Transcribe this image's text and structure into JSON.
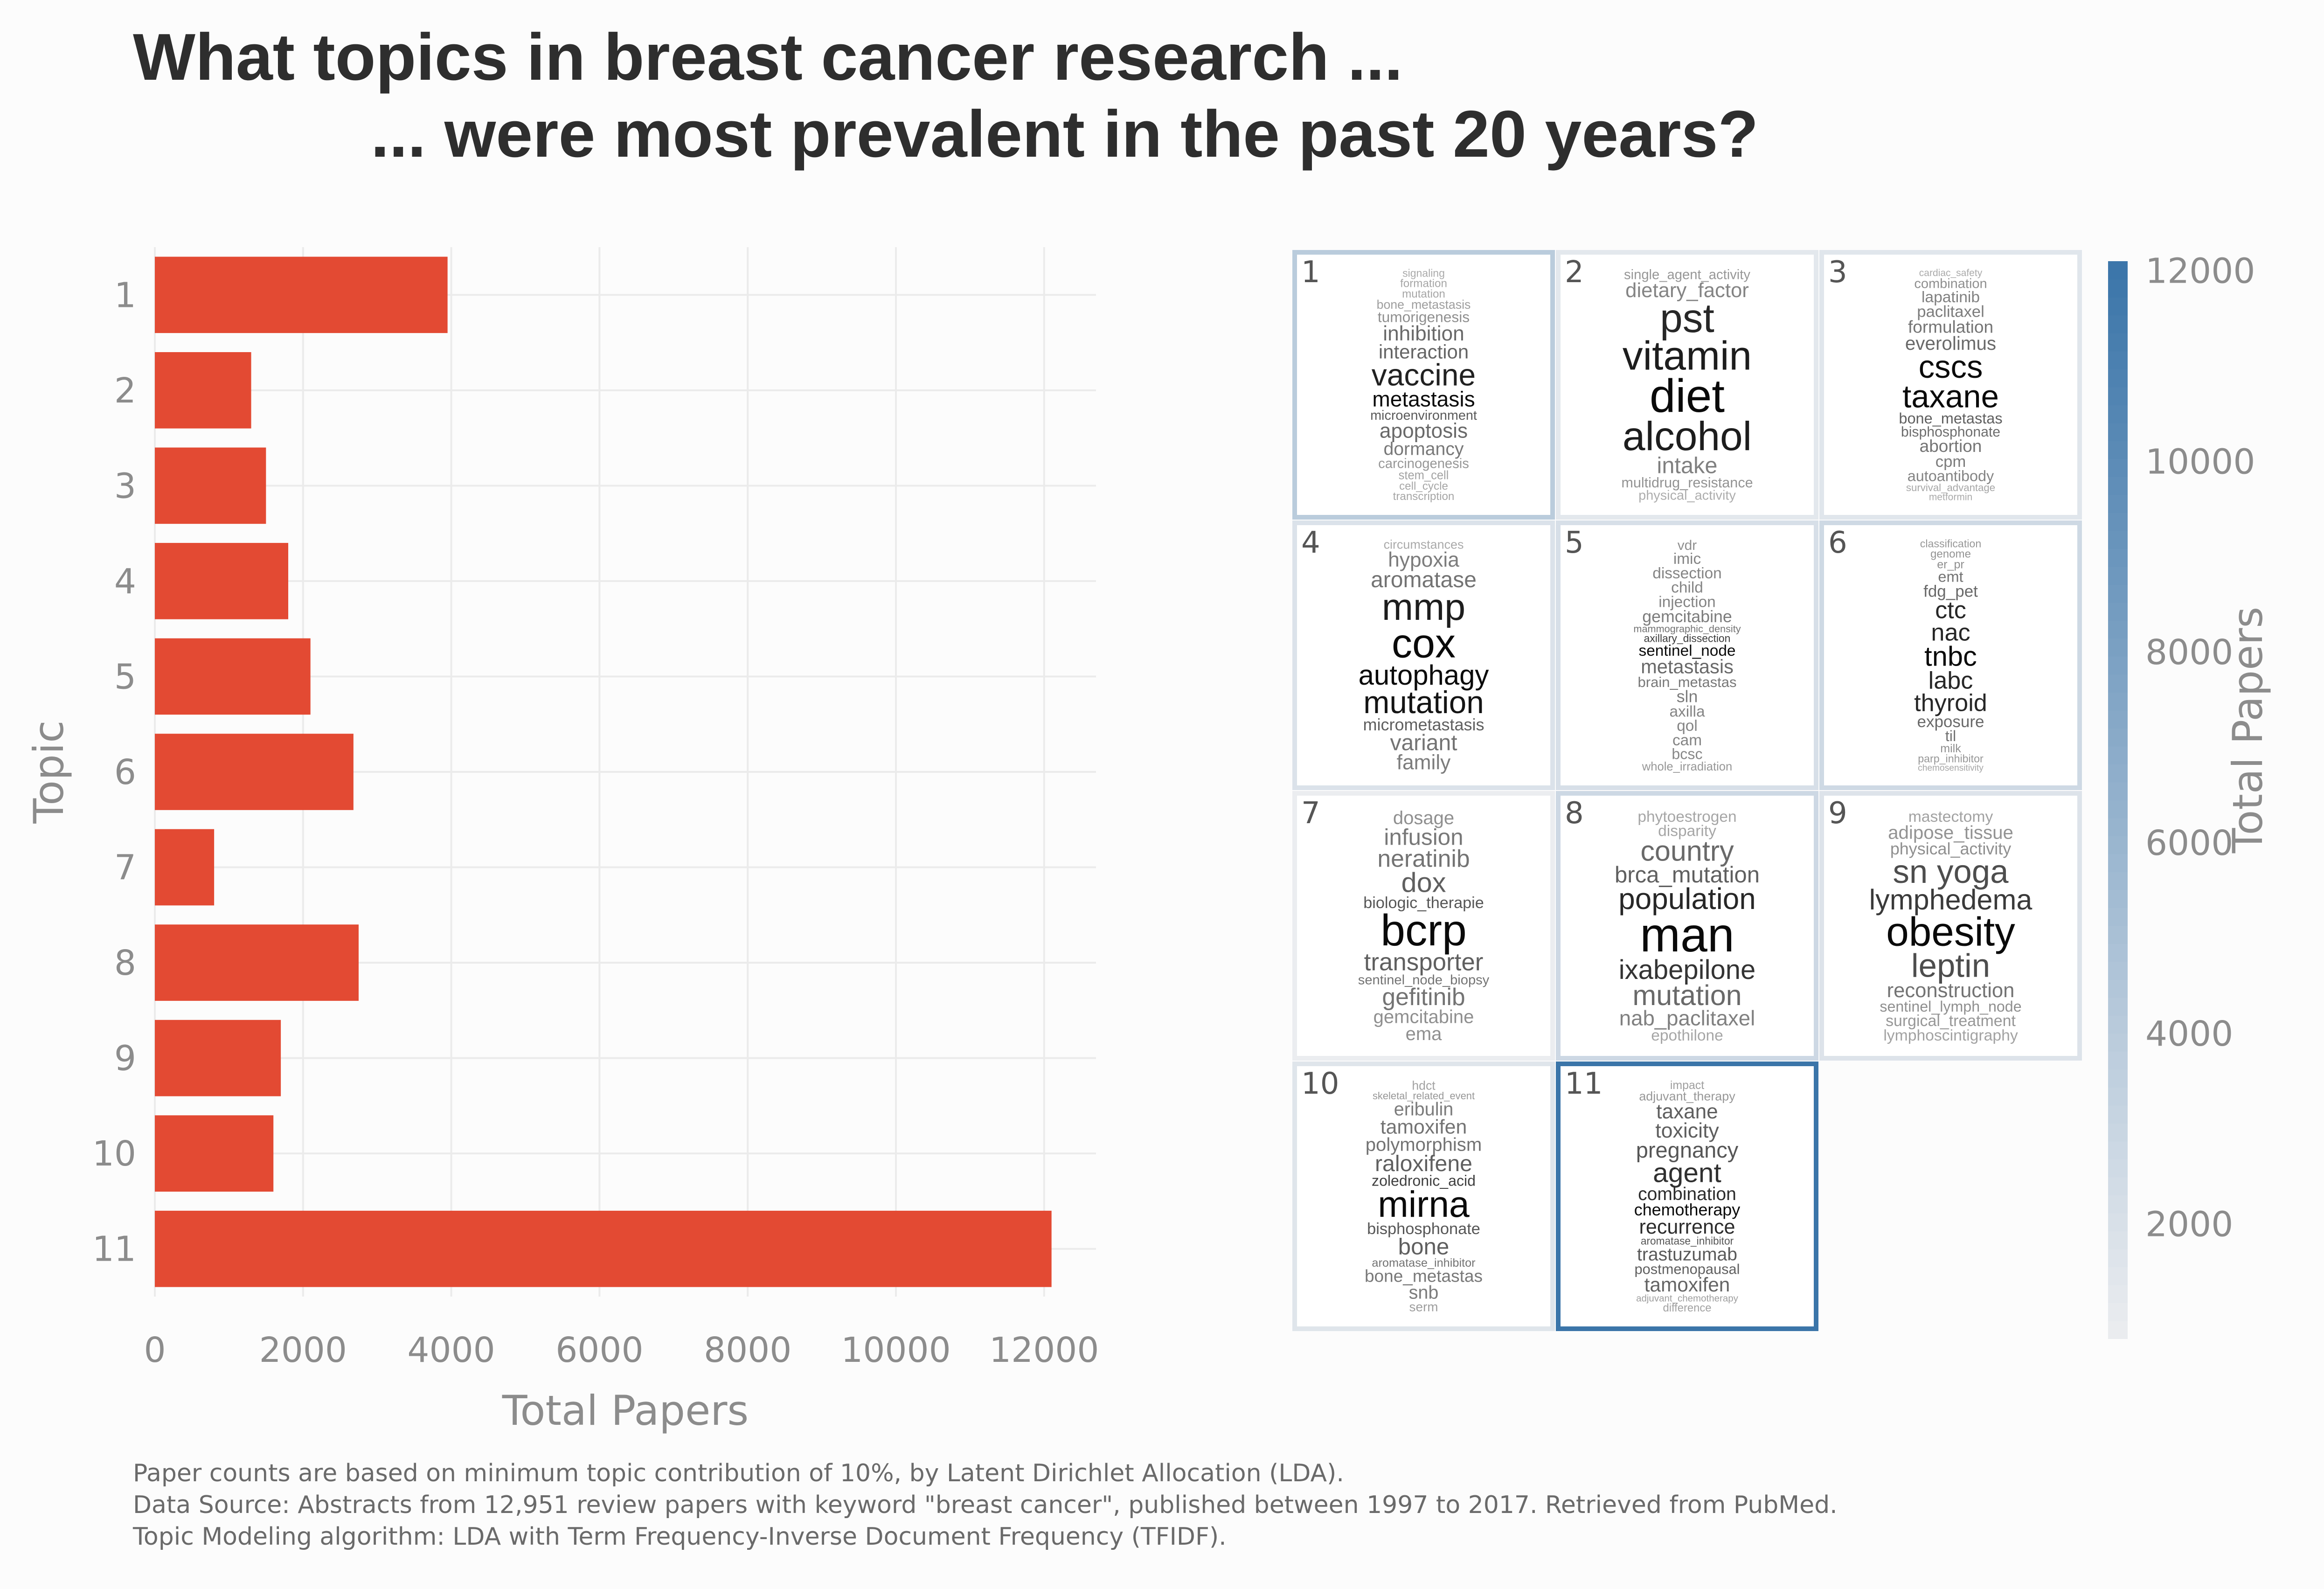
{
  "title_line1": "What topics in breast cancer research ...",
  "title_line2": "... were most prevalent in the past 20 years?",
  "footer": [
    "Paper counts are based on minimum topic contribution of 10%, by Latent Dirichlet Allocation (LDA).",
    "Data Source: Abstracts from 12,951 review papers with keyword \"breast cancer\", published between 1997 to 2017. Retrieved from PubMed.",
    "Topic Modeling algorithm: LDA with Term Frequency-Inverse Document Frequency (TFIDF)."
  ],
  "chart_data": [
    {
      "type": "bar",
      "orientation": "horizontal",
      "categories": [
        "1",
        "2",
        "3",
        "4",
        "5",
        "6",
        "7",
        "8",
        "9",
        "10",
        "11"
      ],
      "values": [
        3950,
        1300,
        1500,
        1800,
        2100,
        2680,
        800,
        2750,
        1700,
        1600,
        12100
      ],
      "xlabel": "Total Papers",
      "ylabel": "Topic",
      "xlim": [
        0,
        12700
      ],
      "xticks": [
        0,
        2000,
        4000,
        6000,
        8000,
        10000,
        12000
      ],
      "grid": true,
      "bar_color": "#e34a33"
    },
    {
      "type": "heatmap",
      "description_type": "word-cloud tiles colored by total papers",
      "legend_title": "Total Papers",
      "legend_ticks": [
        2000,
        4000,
        6000,
        8000,
        10000,
        12000
      ],
      "color_range": [
        "#ebedf0",
        "#3b75a9"
      ],
      "value_range": [
        800,
        12100
      ],
      "tiles": [
        {
          "topic": "1",
          "value": 3950,
          "words": [
            {
              "t": "metastasis",
              "w": 1.0
            },
            {
              "t": "vaccine",
              "w": 0.88
            },
            {
              "t": "microenvironment",
              "w": 0.58
            },
            {
              "t": "interaction",
              "w": 0.52
            },
            {
              "t": "apoptosis",
              "w": 0.5
            },
            {
              "t": "inhibition",
              "w": 0.5
            },
            {
              "t": "dormancy",
              "w": 0.42
            },
            {
              "t": "tumorigenesis",
              "w": 0.3
            },
            {
              "t": "carcinogenesis",
              "w": 0.26
            },
            {
              "t": "bone_metastasis",
              "w": 0.22
            },
            {
              "t": "stem_cell",
              "w": 0.2
            },
            {
              "t": "mutation",
              "w": 0.18
            },
            {
              "t": "cell_cycle",
              "w": 0.18
            },
            {
              "t": "formation",
              "w": 0.18
            },
            {
              "t": "transcription",
              "w": 0.18
            },
            {
              "t": "signaling",
              "w": 0.16
            }
          ]
        },
        {
          "topic": "2",
          "value": 1300,
          "words": [
            {
              "t": "diet",
              "w": 1.0
            },
            {
              "t": "pst",
              "w": 0.85
            },
            {
              "t": "vitamin",
              "w": 0.9
            },
            {
              "t": "alcohol",
              "w": 0.9
            },
            {
              "t": "dietary_factor",
              "w": 0.36
            },
            {
              "t": "intake",
              "w": 0.38
            },
            {
              "t": "multidrug_resistance",
              "w": 0.28
            },
            {
              "t": "single_agent_activity",
              "w": 0.26
            },
            {
              "t": "physical_activity",
              "w": 0.14
            }
          ]
        },
        {
          "topic": "3",
          "value": 1500,
          "words": [
            {
              "t": "taxane",
              "w": 1.0
            },
            {
              "t": "cscs",
              "w": 1.0
            },
            {
              "t": "bone_metastas",
              "w": 0.55
            },
            {
              "t": "bisphosphonate",
              "w": 0.48
            },
            {
              "t": "formulation",
              "w": 0.44
            },
            {
              "t": "everolimus",
              "w": 0.5
            },
            {
              "t": "abortion",
              "w": 0.44
            },
            {
              "t": "paclitaxel",
              "w": 0.4
            },
            {
              "t": "cpm",
              "w": 0.4
            },
            {
              "t": "lapatinib",
              "w": 0.38
            },
            {
              "t": "autoantibody",
              "w": 0.36
            },
            {
              "t": "combination",
              "w": 0.3
            },
            {
              "t": "survival_advantage",
              "w": 0.18
            },
            {
              "t": "cardiac_safety",
              "w": 0.16
            },
            {
              "t": "metformin",
              "w": 0.16
            }
          ]
        },
        {
          "topic": "4",
          "value": 1800,
          "words": [
            {
              "t": "autophagy",
              "w": 1.0
            },
            {
              "t": "cox",
              "w": 1.0
            },
            {
              "t": "mutation",
              "w": 0.95
            },
            {
              "t": "mmp",
              "w": 0.9
            },
            {
              "t": "micrometastasis",
              "w": 0.55
            },
            {
              "t": "aromatase",
              "w": 0.45
            },
            {
              "t": "variant",
              "w": 0.45
            },
            {
              "t": "hypoxia",
              "w": 0.4
            },
            {
              "t": "family",
              "w": 0.4
            },
            {
              "t": "circumstances",
              "w": 0.16
            }
          ]
        },
        {
          "topic": "5",
          "value": 2100,
          "words": [
            {
              "t": "sentinel_node",
              "w": 1.0
            },
            {
              "t": "axillary_dissection",
              "w": 0.75
            },
            {
              "t": "mammographic_density",
              "w": 0.45
            },
            {
              "t": "metastasis",
              "w": 0.5
            },
            {
              "t": "brain_metastas",
              "w": 0.42
            },
            {
              "t": "gemcitabine",
              "w": 0.4
            },
            {
              "t": "injection",
              "w": 0.36
            },
            {
              "t": "axilla",
              "w": 0.36
            },
            {
              "t": "child",
              "w": 0.36
            },
            {
              "t": "sln",
              "w": 0.4
            },
            {
              "t": "qol",
              "w": 0.36
            },
            {
              "t": "dissection",
              "w": 0.36
            },
            {
              "t": "cam",
              "w": 0.36
            },
            {
              "t": "imic",
              "w": 0.36
            },
            {
              "t": "bcsc",
              "w": 0.34
            },
            {
              "t": "vdr",
              "w": 0.3
            },
            {
              "t": "whole_irradiation",
              "w": 0.26
            }
          ]
        },
        {
          "topic": "6",
          "value": 2680,
          "words": [
            {
              "t": "tnbc",
              "w": 1.0
            },
            {
              "t": "nac",
              "w": 0.85
            },
            {
              "t": "labc",
              "w": 0.85
            },
            {
              "t": "ctc",
              "w": 0.85
            },
            {
              "t": "thyroid",
              "w": 0.85
            },
            {
              "t": "fdg_pet",
              "w": 0.5
            },
            {
              "t": "exposure",
              "w": 0.5
            },
            {
              "t": "emt",
              "w": 0.45
            },
            {
              "t": "til",
              "w": 0.45
            },
            {
              "t": "er_pr",
              "w": 0.3
            },
            {
              "t": "milk",
              "w": 0.3
            },
            {
              "t": "genome",
              "w": 0.28
            },
            {
              "t": "parp_inhibitor",
              "w": 0.26
            },
            {
              "t": "classification",
              "w": 0.26
            },
            {
              "t": "chemosensitivity",
              "w": 0.18
            }
          ]
        },
        {
          "topic": "7",
          "value": 800,
          "words": [
            {
              "t": "bcrp",
              "w": 1.0
            },
            {
              "t": "biologic_therapie",
              "w": 0.6
            },
            {
              "t": "transporter",
              "w": 0.55
            },
            {
              "t": "dox",
              "w": 0.55
            },
            {
              "t": "sentinel_node_biopsy",
              "w": 0.45
            },
            {
              "t": "neratinib",
              "w": 0.45
            },
            {
              "t": "gefitinib",
              "w": 0.45
            },
            {
              "t": "infusion",
              "w": 0.42
            },
            {
              "t": "gemcitabine",
              "w": 0.3
            },
            {
              "t": "dosage",
              "w": 0.3
            },
            {
              "t": "ema",
              "w": 0.3
            }
          ]
        },
        {
          "topic": "8",
          "value": 2750,
          "words": [
            {
              "t": "man",
              "w": 1.0
            },
            {
              "t": "ixabepilone",
              "w": 0.78
            },
            {
              "t": "population",
              "w": 0.85
            },
            {
              "t": "brca_mutation",
              "w": 0.55
            },
            {
              "t": "mutation",
              "w": 0.5
            },
            {
              "t": "country",
              "w": 0.5
            },
            {
              "t": "nab_paclitaxel",
              "w": 0.38
            },
            {
              "t": "disparity",
              "w": 0.18
            },
            {
              "t": "epothilone",
              "w": 0.18
            },
            {
              "t": "phytoestrogen",
              "w": 0.18
            }
          ]
        },
        {
          "topic": "9",
          "value": 1700,
          "words": [
            {
              "t": "obesity",
              "w": 1.0
            },
            {
              "t": "lymphedema",
              "w": 0.75
            },
            {
              "t": "leptin",
              "w": 0.65
            },
            {
              "t": "sn yoga",
              "w": 0.65
            },
            {
              "t": "reconstruction",
              "w": 0.45
            },
            {
              "t": "physical_activity",
              "w": 0.3
            },
            {
              "t": "adipose_tissue",
              "w": 0.28
            },
            {
              "t": "surgical_treatment",
              "w": 0.26
            },
            {
              "t": "sentinel_lymph_node",
              "w": 0.3
            },
            {
              "t": "mastectomy",
              "w": 0.2
            },
            {
              "t": "lymphoscintigraphy",
              "w": 0.2
            }
          ]
        },
        {
          "topic": "10",
          "value": 1600,
          "words": [
            {
              "t": "mirna",
              "w": 1.0
            },
            {
              "t": "zoledronic_acid",
              "w": 0.72
            },
            {
              "t": "bisphosphonate",
              "w": 0.6
            },
            {
              "t": "raloxifene",
              "w": 0.55
            },
            {
              "t": "bone",
              "w": 0.55
            },
            {
              "t": "polymorphism",
              "w": 0.45
            },
            {
              "t": "bone_metastas",
              "w": 0.42
            },
            {
              "t": "eribulin",
              "w": 0.4
            },
            {
              "t": "aromatase_inhibitor",
              "w": 0.45
            },
            {
              "t": "tamoxifen",
              "w": 0.45
            },
            {
              "t": "snb",
              "w": 0.4
            },
            {
              "t": "skeletal_related_event",
              "w": 0.26
            },
            {
              "t": "serm",
              "w": 0.22
            },
            {
              "t": "hdct",
              "w": 0.2
            }
          ]
        },
        {
          "topic": "11",
          "value": 12100,
          "words": [
            {
              "t": "chemotherapy",
              "w": 1.0
            },
            {
              "t": "combination",
              "w": 0.82
            },
            {
              "t": "recurrence",
              "w": 0.82
            },
            {
              "t": "agent",
              "w": 0.8
            },
            {
              "t": "aromatase_inhibitor",
              "w": 0.6
            },
            {
              "t": "postmenopausal",
              "w": 0.55
            },
            {
              "t": "pregnancy",
              "w": 0.6
            },
            {
              "t": "tamoxifen",
              "w": 0.52
            },
            {
              "t": "trastuzumab",
              "w": 0.58
            },
            {
              "t": "toxicity",
              "w": 0.56
            },
            {
              "t": "taxane",
              "w": 0.55
            },
            {
              "t": "adjuvant_therapy",
              "w": 0.26
            },
            {
              "t": "adjuvant_chemotherapy",
              "w": 0.22
            },
            {
              "t": "impact",
              "w": 0.22
            },
            {
              "t": "difference",
              "w": 0.2
            }
          ]
        }
      ]
    }
  ]
}
